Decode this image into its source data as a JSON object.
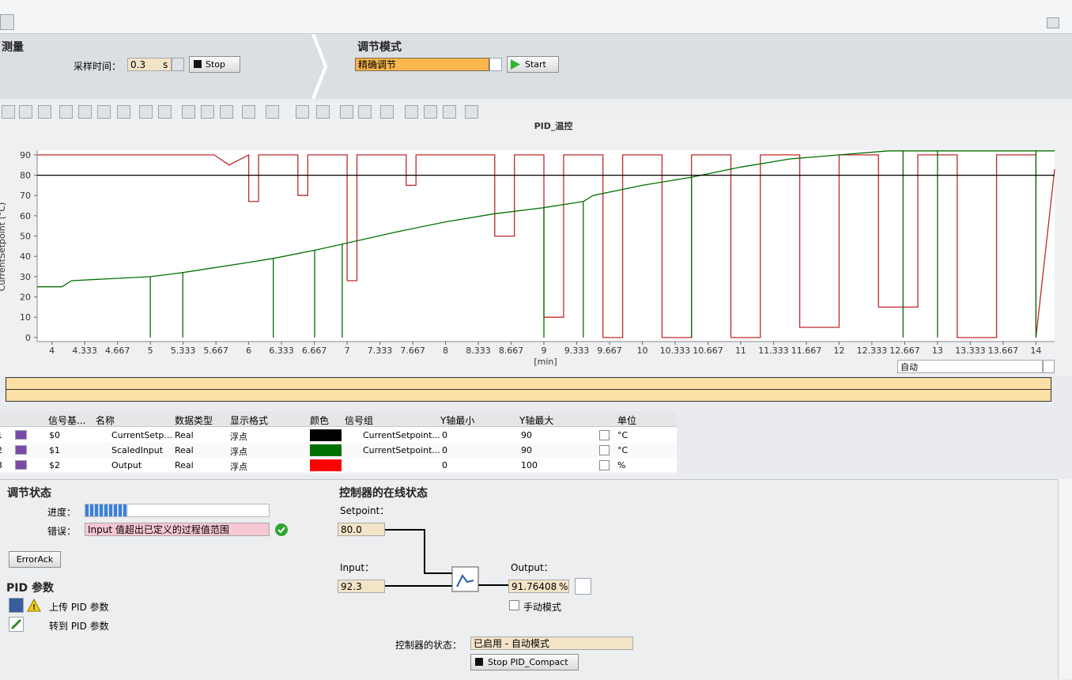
{
  "measurement": {
    "title": "测量",
    "sample_time_label": "采样时间：",
    "sample_time": "0.3",
    "unit": "s",
    "stop_button": "Stop"
  },
  "tuning_mode": {
    "title": "调节模式",
    "mode": "精确调节",
    "start_button": "Start"
  },
  "trend": {
    "type": "line",
    "title": "PID_温控",
    "y_label": "CurrentSetpoint (°C)",
    "x_label": "[min]",
    "xlim": [
      3.85,
      14.19
    ],
    "ylim": [
      -2,
      92.3
    ],
    "xticks": [
      4,
      4.333,
      4.667,
      5,
      5.333,
      5.667,
      6,
      6.333,
      6.667,
      7,
      7.333,
      7.667,
      8,
      8.333,
      8.667,
      9,
      9.333,
      9.667,
      10,
      10.333,
      10.667,
      11,
      11.333,
      11.667,
      12,
      12.333,
      12.667,
      13,
      13.333,
      13.667,
      14
    ],
    "yticks": [
      0,
      10,
      20,
      30,
      40,
      50,
      60,
      70,
      80,
      90
    ],
    "grid": false,
    "series": [
      {
        "name": "CurrentSetpoint",
        "color": "#000000",
        "x": [
          3.85,
          14.19
        ],
        "values": [
          80,
          80
        ]
      },
      {
        "name": "ScaledInput",
        "color": "#007000",
        "x": [
          3.85,
          4.1,
          4.2,
          5.0,
          5.0,
          5.0,
          5.33,
          5.33,
          5.33,
          6.0,
          6.25,
          6.25,
          6.25,
          6.67,
          6.67,
          6.67,
          6.95,
          6.95,
          6.95,
          7.5,
          8.0,
          8.5,
          9.0,
          9.0,
          9.0,
          9.4,
          9.4,
          9.4,
          9.5,
          10.0,
          10.5,
          10.5,
          10.5,
          11.0,
          11.5,
          12.0,
          12.5,
          12.65,
          12.65,
          12.65,
          13.0,
          13.0,
          13.0,
          14.0,
          14.0,
          14.0,
          14.19
        ],
        "values": [
          25,
          25,
          28,
          30,
          0,
          30,
          32,
          0,
          32,
          37,
          39,
          0,
          39,
          43,
          0,
          43,
          46,
          0,
          46,
          52,
          57,
          61,
          64,
          0,
          64,
          67,
          0,
          67,
          70,
          75,
          79,
          0,
          79,
          84,
          88,
          90,
          92,
          92,
          0,
          92,
          92,
          0,
          92,
          92,
          0,
          92,
          92
        ]
      },
      {
        "name": "Output",
        "color": "#c0282e",
        "x": [
          3.85,
          5.65,
          5.8,
          6.0,
          6.0,
          6.1,
          6.1,
          6.5,
          6.5,
          6.6,
          6.6,
          7.0,
          7.0,
          7.1,
          7.1,
          7.6,
          7.6,
          7.7,
          7.7,
          8.5,
          8.5,
          8.7,
          8.7,
          9.0,
          9.0,
          9.2,
          9.2,
          9.6,
          9.6,
          9.8,
          9.8,
          10.2,
          10.2,
          10.5,
          10.5,
          10.9,
          10.9,
          11.2,
          11.2,
          11.6,
          11.6,
          12.0,
          12.0,
          12.4,
          12.4,
          12.8,
          12.8,
          13.2,
          13.2,
          13.6,
          13.6,
          14.0,
          14.0,
          14.19
        ],
        "values": [
          90,
          90,
          85,
          90,
          67,
          67,
          90,
          90,
          70,
          70,
          90,
          90,
          28,
          28,
          90,
          90,
          75,
          75,
          90,
          90,
          50,
          50,
          90,
          90,
          10,
          10,
          90,
          90,
          0,
          0,
          90,
          90,
          0,
          0,
          90,
          90,
          0,
          0,
          90,
          90,
          5,
          5,
          90,
          90,
          15,
          15,
          90,
          90,
          0,
          0,
          90,
          90,
          0,
          83
        ]
      }
    ]
  },
  "overview": {
    "range_mode": "自动"
  },
  "table": {
    "headers": [
      "信号基...",
      "名称",
      "数据类型",
      "显示格式",
      "颜色",
      "信号组",
      "Y轴最小",
      "Y轴最大",
      "单位"
    ],
    "rows": [
      [
        1,
        "$0",
        "CurrentSetp...",
        "Real",
        "浮点",
        "#000000",
        "CurrentSetpoint...",
        0,
        90,
        "°C"
      ],
      [
        2,
        "$1",
        "ScaledInput",
        "Real",
        "浮点",
        "#007000",
        "CurrentSetpoint...",
        0,
        90,
        "°C"
      ],
      [
        3,
        "$2",
        "Output",
        "Real",
        "浮点",
        "#ff0000",
        null,
        0,
        100,
        "%"
      ]
    ]
  },
  "tuning_status": {
    "title": "调节状态",
    "progress_label": "进度：",
    "error_label": "错误：",
    "error_text": "Input 值超出已定义的过程值范围",
    "error_ack": "ErrorAck"
  },
  "pid_params": {
    "title": "PID 参数",
    "upload": "上传 PID 参数",
    "goto": "转到 PID 参数"
  },
  "online_status": {
    "title": "控制器的在线状态",
    "setpoint_label": "Setpoint：",
    "setpoint": "80.0",
    "input_label": "Input：",
    "input": "92.3",
    "output_label": "Output：",
    "output": "91.76408",
    "output_unit": "%",
    "manual_mode": "手动模式",
    "state_label": "控制器的状态：",
    "state": "已启用 - 自动模式",
    "stop_button": "Stop PID_Compact"
  }
}
